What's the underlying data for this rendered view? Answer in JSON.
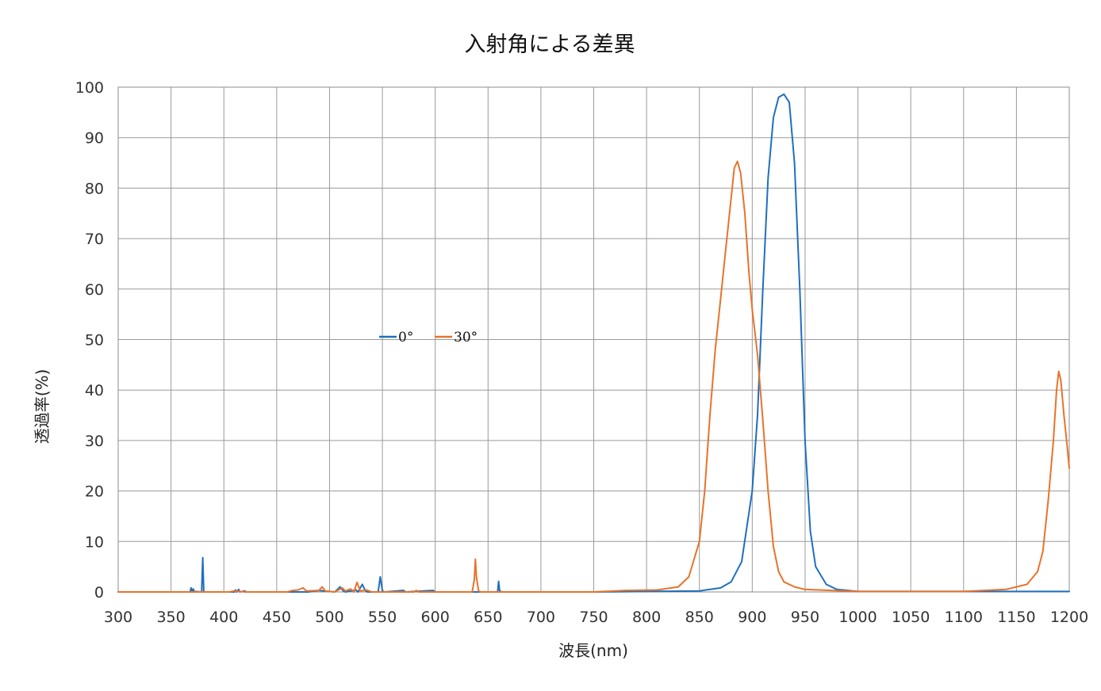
{
  "chart_data": {
    "type": "line",
    "title": "入射角による差異",
    "xlabel": "波長(nm)",
    "ylabel": "透過率(%)",
    "xlim": [
      300,
      1200
    ],
    "ylim": [
      0,
      100
    ],
    "x_ticks": [
      300,
      350,
      400,
      450,
      500,
      550,
      600,
      650,
      700,
      750,
      800,
      850,
      900,
      950,
      1000,
      1050,
      1100,
      1150,
      1200
    ],
    "y_ticks": [
      0,
      10,
      20,
      30,
      40,
      50,
      60,
      70,
      80,
      90,
      100
    ],
    "grid": true,
    "legend": {
      "placement": "center-left"
    },
    "series": [
      {
        "name": "0°",
        "color": "#1f6fbf",
        "points": [
          [
            300,
            0
          ],
          [
            368,
            0
          ],
          [
            369,
            0.8
          ],
          [
            370,
            0.1
          ],
          [
            371,
            0.6
          ],
          [
            372,
            0.1
          ],
          [
            379,
            0
          ],
          [
            380,
            6.8
          ],
          [
            381,
            0
          ],
          [
            410,
            0
          ],
          [
            411,
            0.4
          ],
          [
            412,
            0
          ],
          [
            414,
            0.5
          ],
          [
            415,
            0
          ],
          [
            420,
            0.2
          ],
          [
            421,
            0
          ],
          [
            480,
            0
          ],
          [
            490,
            0.3
          ],
          [
            500,
            0.1
          ],
          [
            505,
            0
          ],
          [
            510,
            1.0
          ],
          [
            513,
            0.2
          ],
          [
            515,
            0
          ],
          [
            525,
            0.4
          ],
          [
            527,
            0
          ],
          [
            531,
            1.5
          ],
          [
            534,
            0.2
          ],
          [
            536,
            0
          ],
          [
            546,
            0
          ],
          [
            548,
            3.0
          ],
          [
            550,
            0.2
          ],
          [
            552,
            0
          ],
          [
            570,
            0.3
          ],
          [
            572,
            0
          ],
          [
            598,
            0.3
          ],
          [
            600,
            0
          ],
          [
            659,
            0
          ],
          [
            660,
            2.1
          ],
          [
            661,
            0.2
          ],
          [
            663,
            0
          ],
          [
            750,
            0
          ],
          [
            850,
            0.2
          ],
          [
            870,
            0.8
          ],
          [
            880,
            2
          ],
          [
            890,
            6
          ],
          [
            900,
            20
          ],
          [
            905,
            35
          ],
          [
            910,
            60
          ],
          [
            915,
            82
          ],
          [
            920,
            94
          ],
          [
            925,
            98
          ],
          [
            930,
            98.6
          ],
          [
            935,
            97
          ],
          [
            940,
            85
          ],
          [
            945,
            60
          ],
          [
            950,
            30
          ],
          [
            955,
            12
          ],
          [
            960,
            5
          ],
          [
            970,
            1.5
          ],
          [
            980,
            0.5
          ],
          [
            1000,
            0.1
          ],
          [
            1200,
            0.1
          ]
        ]
      },
      {
        "name": "30°",
        "color": "#e8732a",
        "points": [
          [
            300,
            0
          ],
          [
            405,
            0
          ],
          [
            410,
            0.2
          ],
          [
            420,
            0
          ],
          [
            460,
            0
          ],
          [
            465,
            0.3
          ],
          [
            470,
            0.4
          ],
          [
            475,
            0.8
          ],
          [
            478,
            0.2
          ],
          [
            490,
            0.3
          ],
          [
            493,
            1.0
          ],
          [
            496,
            0.2
          ],
          [
            505,
            0
          ],
          [
            512,
            0.8
          ],
          [
            515,
            0.2
          ],
          [
            520,
            0.6
          ],
          [
            523,
            0
          ],
          [
            526,
            1.9
          ],
          [
            529,
            0.2
          ],
          [
            535,
            0.4
          ],
          [
            540,
            0
          ],
          [
            580,
            0
          ],
          [
            582,
            0.3
          ],
          [
            584,
            0
          ],
          [
            635,
            0
          ],
          [
            637,
            2.5
          ],
          [
            638,
            6.5
          ],
          [
            639,
            3
          ],
          [
            641,
            0.2
          ],
          [
            643,
            0
          ],
          [
            750,
            0
          ],
          [
            780,
            0.3
          ],
          [
            810,
            0.4
          ],
          [
            830,
            1
          ],
          [
            840,
            3
          ],
          [
            850,
            10
          ],
          [
            855,
            20
          ],
          [
            860,
            35
          ],
          [
            865,
            48
          ],
          [
            870,
            58
          ],
          [
            875,
            68
          ],
          [
            880,
            78
          ],
          [
            883,
            84
          ],
          [
            886,
            85.3
          ],
          [
            889,
            83
          ],
          [
            893,
            75
          ],
          [
            897,
            63
          ],
          [
            900,
            56
          ],
          [
            905,
            47
          ],
          [
            910,
            34
          ],
          [
            915,
            20
          ],
          [
            920,
            9
          ],
          [
            925,
            4
          ],
          [
            930,
            2
          ],
          [
            940,
            1
          ],
          [
            950,
            0.5
          ],
          [
            1000,
            0.1
          ],
          [
            1100,
            0.1
          ],
          [
            1140,
            0.5
          ],
          [
            1160,
            1.5
          ],
          [
            1170,
            4
          ],
          [
            1175,
            8
          ],
          [
            1180,
            18
          ],
          [
            1185,
            30
          ],
          [
            1188,
            40
          ],
          [
            1190,
            43.7
          ],
          [
            1192,
            42
          ],
          [
            1195,
            35
          ],
          [
            1198,
            29
          ],
          [
            1200,
            24.5
          ]
        ]
      }
    ]
  }
}
